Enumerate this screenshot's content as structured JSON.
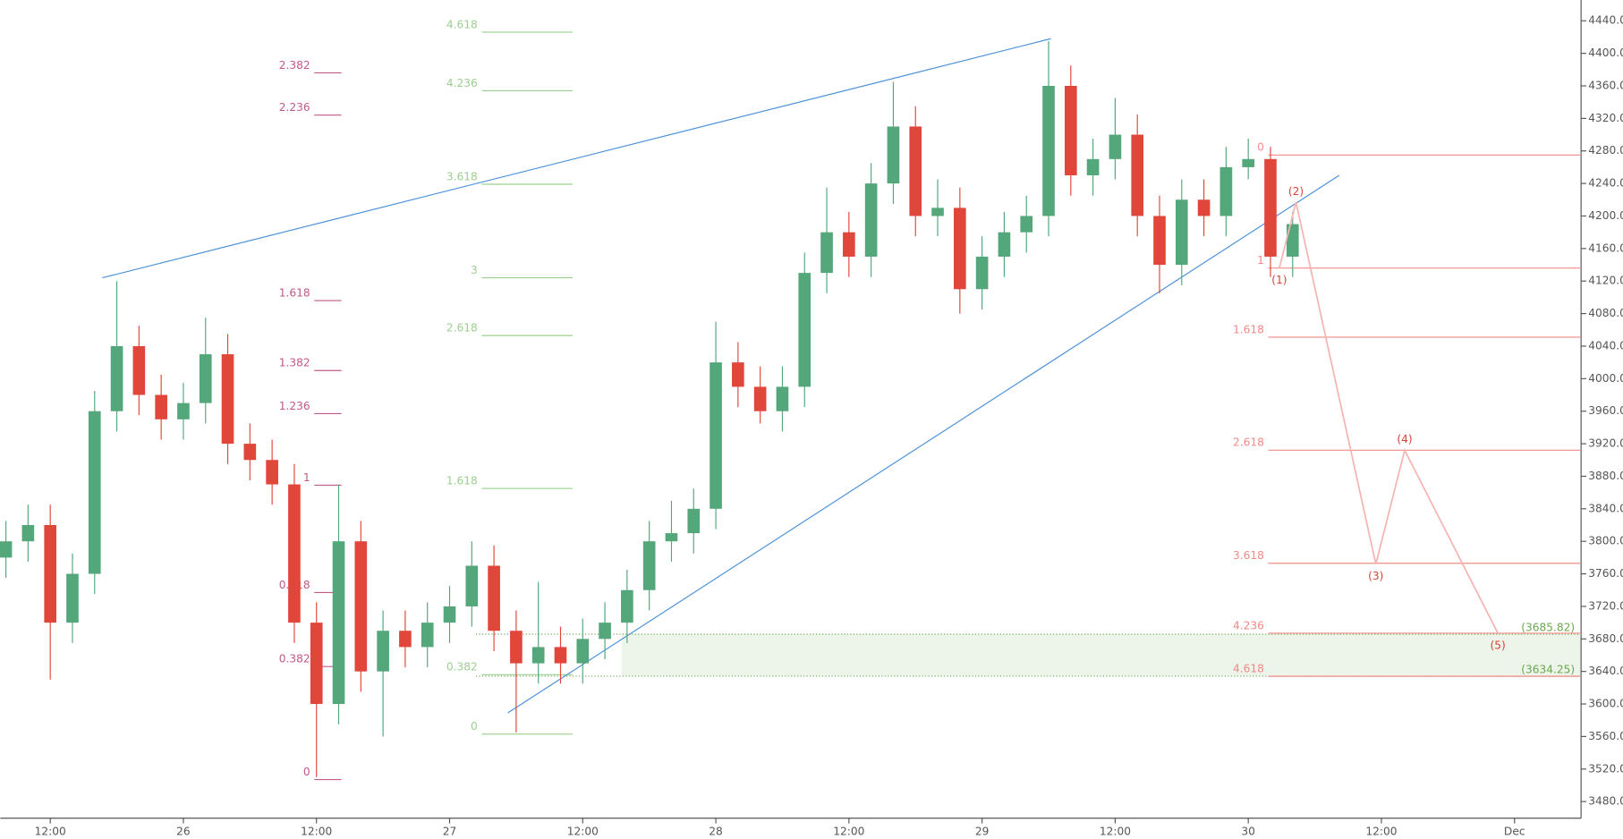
{
  "chart_data": {
    "type": "candlestick",
    "x": [
      8,
      10,
      12,
      14,
      16,
      18,
      20,
      22,
      24,
      26,
      28,
      30,
      32,
      34,
      36,
      38,
      40,
      42,
      44,
      46,
      48,
      50,
      52,
      54,
      56,
      58,
      60,
      62,
      64,
      66,
      68,
      70,
      72,
      74,
      76,
      78,
      80,
      82,
      84,
      86,
      88,
      90,
      92,
      94,
      96,
      98,
      100,
      102,
      104,
      106,
      108,
      110,
      112,
      114,
      116,
      118,
      120,
      122,
      124
    ],
    "open": [
      3780,
      3800,
      3820,
      3700,
      3760,
      3960,
      4040,
      3980,
      3950,
      3970,
      4030,
      3920,
      3900,
      3870,
      3700,
      3600,
      3800,
      3640,
      3690,
      3670,
      3700,
      3720,
      3770,
      3690,
      3650,
      3670,
      3650,
      3680,
      3700,
      3740,
      3800,
      3810,
      3840,
      4020,
      3990,
      3960,
      3990,
      4130,
      4180,
      4150,
      4240,
      4310,
      4200,
      4210,
      4110,
      4150,
      4180,
      4200,
      4360,
      4250,
      4270,
      4300,
      4200,
      4140,
      4220,
      4200,
      4260,
      4270,
      4150
    ],
    "high": [
      3825,
      3845,
      3845,
      3785,
      3985,
      4120,
      4065,
      4005,
      3995,
      4075,
      4055,
      3945,
      3925,
      3895,
      3725,
      3870,
      3825,
      3715,
      3715,
      3725,
      3745,
      3800,
      3795,
      3715,
      3750,
      3695,
      3705,
      3725,
      3765,
      3825,
      3850,
      3865,
      4070,
      4045,
      4015,
      4015,
      4155,
      4235,
      4205,
      4265,
      4365,
      4335,
      4245,
      4235,
      4175,
      4205,
      4225,
      4415,
      4385,
      4295,
      4345,
      4325,
      4225,
      4245,
      4245,
      4285,
      4295,
      4285,
      4205
    ],
    "low": [
      3755,
      3775,
      3630,
      3675,
      3735,
      3935,
      3955,
      3925,
      3925,
      3945,
      3895,
      3875,
      3845,
      3675,
      3510,
      3575,
      3615,
      3560,
      3645,
      3645,
      3675,
      3695,
      3665,
      3565,
      3625,
      3625,
      3625,
      3655,
      3675,
      3715,
      3775,
      3785,
      3815,
      3965,
      3945,
      3935,
      3965,
      4105,
      4125,
      4125,
      4215,
      4175,
      4175,
      4080,
      4085,
      4125,
      4155,
      4175,
      4225,
      4225,
      4245,
      4175,
      4105,
      4115,
      4175,
      4175,
      4245,
      4125,
      4125
    ],
    "close": [
      3800,
      3820,
      3700,
      3760,
      3960,
      4040,
      3980,
      3950,
      3970,
      4030,
      3920,
      3900,
      3870,
      3700,
      3600,
      3800,
      3640,
      3690,
      3670,
      3700,
      3720,
      3770,
      3690,
      3650,
      3670,
      3650,
      3680,
      3700,
      3740,
      3800,
      3810,
      3840,
      4020,
      3990,
      3960,
      3990,
      4130,
      4180,
      4150,
      4240,
      4310,
      4200,
      4210,
      4110,
      4150,
      4180,
      4200,
      4360,
      4250,
      4270,
      4300,
      4200,
      4140,
      4220,
      4200,
      4260,
      4270,
      4150,
      4190
    ],
    "up_color": "#53a77a",
    "down_color": "#e0473a",
    "xlim": [
      7.5,
      150
    ],
    "xticks": [
      {
        "value": 12,
        "label": "12:00"
      },
      {
        "value": 24,
        "label": "26"
      },
      {
        "value": 36,
        "label": "12:00"
      },
      {
        "value": 48,
        "label": "27"
      },
      {
        "value": 60,
        "label": "12:00"
      },
      {
        "value": 72,
        "label": "28"
      },
      {
        "value": 84,
        "label": "12:00"
      },
      {
        "value": 96,
        "label": "29"
      },
      {
        "value": 108,
        "label": "12:00"
      },
      {
        "value": 120,
        "label": "30"
      },
      {
        "value": 132,
        "label": "12:00"
      },
      {
        "value": 144,
        "label": "Dec"
      }
    ],
    "ylim": [
      3460,
      4460
    ],
    "yticks": [
      {
        "value": 3480,
        "label": "3480.00"
      },
      {
        "value": 3520,
        "label": "3520.00"
      },
      {
        "value": 3560,
        "label": "3560.00"
      },
      {
        "value": 3600,
        "label": "3600.00"
      },
      {
        "value": 3640,
        "label": "3640.00"
      },
      {
        "value": 3680,
        "label": "3680.00"
      },
      {
        "value": 3720,
        "label": "3720.00"
      },
      {
        "value": 3760,
        "label": "3760.00"
      },
      {
        "value": 3800,
        "label": "3800.00"
      },
      {
        "value": 3840,
        "label": "3840.00"
      },
      {
        "value": 3880,
        "label": "3880.00"
      },
      {
        "value": 3920,
        "label": "3920.00"
      },
      {
        "value": 3960,
        "label": "3960.00"
      },
      {
        "value": 4000,
        "label": "4000.00"
      },
      {
        "value": 4040,
        "label": "4040.00"
      },
      {
        "value": 4080,
        "label": "4080.00"
      },
      {
        "value": 4120,
        "label": "4120.00"
      },
      {
        "value": 4160,
        "label": "4160.00"
      },
      {
        "value": 4200,
        "label": "4200.00"
      },
      {
        "value": 4240,
        "label": "4240.00"
      },
      {
        "value": 4280,
        "label": "4280.00"
      },
      {
        "value": 4320,
        "label": "4320.00"
      },
      {
        "value": 4360,
        "label": "4360.00"
      },
      {
        "value": 4400,
        "label": "4400.00"
      },
      {
        "value": 4440,
        "label": "4440.00"
      }
    ],
    "fibs": [
      {
        "color": "#c2588a",
        "x": [
          35.8,
          38.25
        ],
        "levels": [
          "0",
          "0.382",
          "0.618",
          "1",
          "1.236",
          "1.382",
          "1.618",
          "2.236",
          "2.382"
        ],
        "prices": [
          3507,
          3646,
          3737,
          3869,
          3957,
          4010,
          4096,
          4324,
          4376
        ]
      },
      {
        "color": "#9ccf8f",
        "x": [
          50.9,
          59.1
        ],
        "levels": [
          "0",
          "0.382",
          "1.618",
          "2.618",
          "3",
          "3.618",
          "4.236",
          "4.618"
        ],
        "prices": [
          3563,
          3636,
          3865,
          4053,
          4124,
          4239,
          4354,
          4426
        ]
      },
      {
        "color": "#f08a86",
        "x": [
          121.8,
          150
        ],
        "levels": [
          "0",
          "1",
          "1.618",
          "2.618",
          "3.618",
          "4.236",
          "4.618"
        ],
        "prices": [
          4275,
          4136,
          4051,
          3912,
          3773,
          3687,
          3634
        ]
      }
    ],
    "trendlines": [
      {
        "color": "#4a90d9",
        "x": [
          16.7,
          102.2
        ],
        "prices": [
          4124,
          4418
        ]
      },
      {
        "color": "#4a90d9",
        "x": [
          53.25,
          128.2
        ],
        "prices": [
          3589,
          4250
        ]
      }
    ],
    "zone": {
      "color": "#6aa84f",
      "x": [
        63.5,
        150
      ],
      "prices": [
        3685.82,
        3634.25
      ],
      "labels": [
        "(3685.82)",
        "(3634.25)"
      ]
    },
    "wave": {
      "color": "#f4b5b3",
      "label_color": "#d9433a",
      "x": [
        122.8,
        124.3,
        131.5,
        134.1,
        142.5
      ],
      "prices": [
        4136,
        4217,
        3772,
        3912,
        3687
      ],
      "labels": [
        "(1)",
        "(2)",
        "(3)",
        "(4)",
        "(5)"
      ]
    }
  }
}
